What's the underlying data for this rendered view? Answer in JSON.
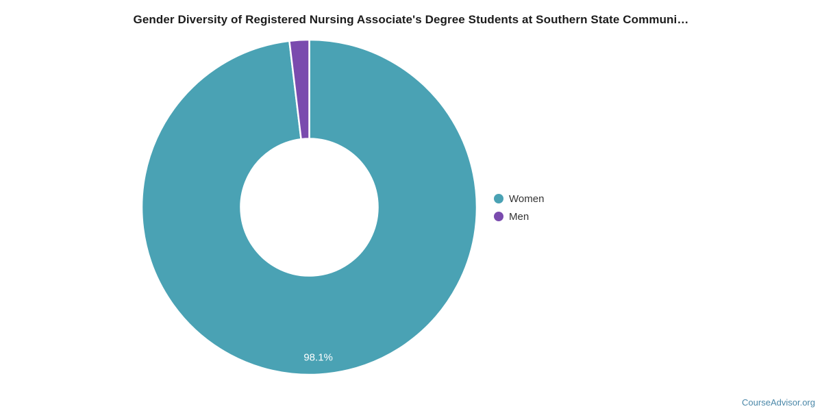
{
  "chart_data": {
    "type": "pie",
    "subtype": "donut",
    "title": "Gender Diversity of Registered Nursing Associate's Degree Students at Southern State Communi…",
    "unit": "%",
    "start_angle": "12-oclock",
    "direction": "clockwise",
    "legend_position": "right-middle",
    "series": [
      {
        "name": "Women",
        "value": 98.1,
        "color": "#4aa2b4",
        "label": "98.1%"
      },
      {
        "name": "Men",
        "value": 1.9,
        "color": "#7a4bae",
        "label": ""
      }
    ],
    "slice_border_color": "#ffffff",
    "slice_label_color": "#ffffff"
  },
  "footer": {
    "text": "CourseAdvisor.org",
    "color": "#4a87a8"
  }
}
